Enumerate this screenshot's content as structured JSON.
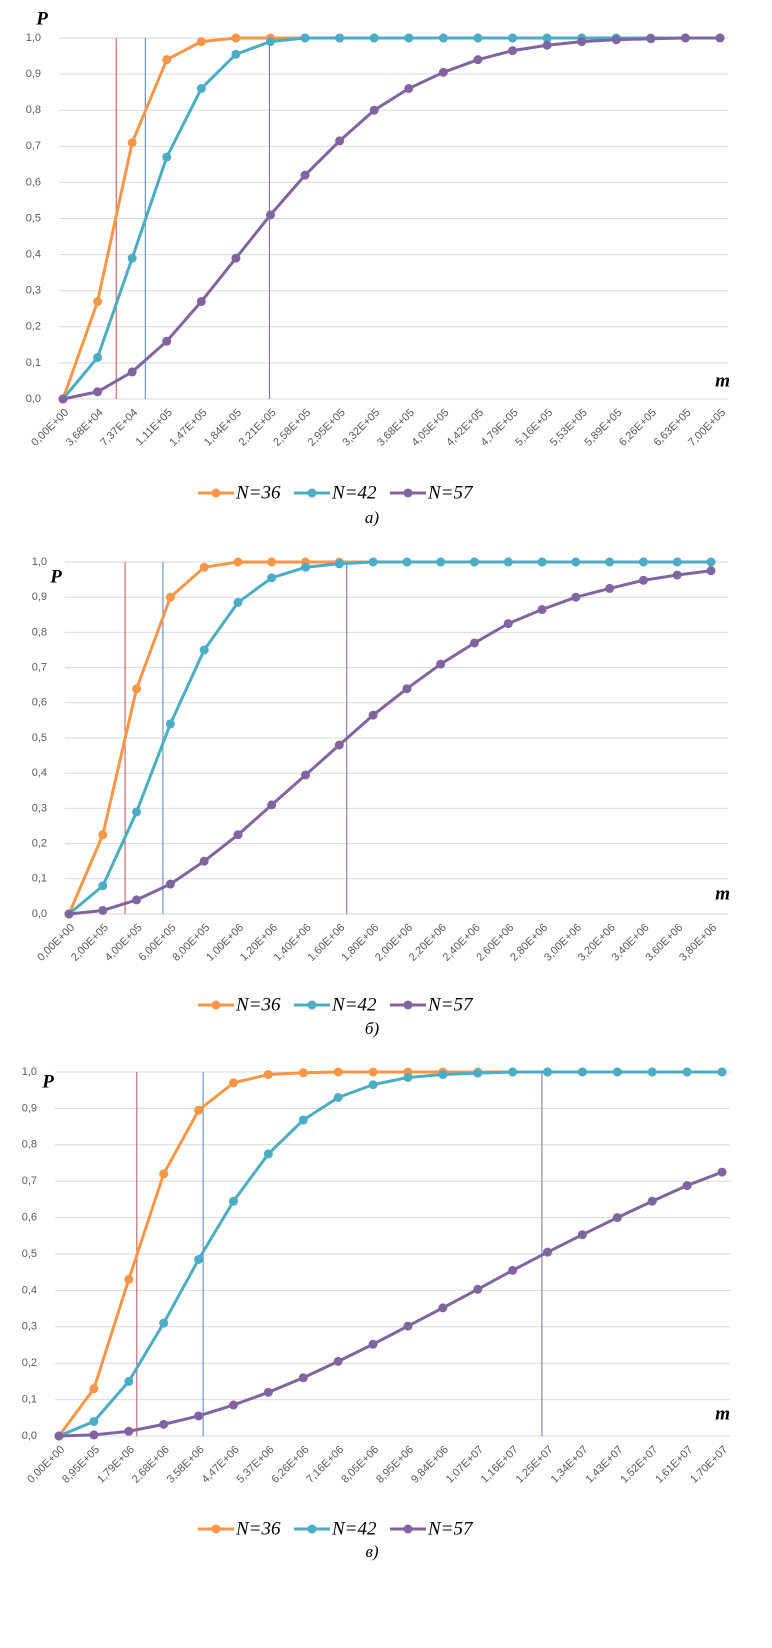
{
  "chart_data": [
    {
      "type": "line",
      "y_label": "P",
      "x_label": "m",
      "caption": "а)",
      "categories": [
        "0,00E+00",
        "3,68E+04",
        "7,37E+04",
        "1,11E+05",
        "1,47E+05",
        "1,84E+05",
        "2,21E+05",
        "2,58E+05",
        "2,95E+05",
        "3,32E+05",
        "3,68E+05",
        "4,05E+05",
        "4,42E+05",
        "4,79E+05",
        "5,16E+05",
        "5,53E+05",
        "5,89E+05",
        "6,26E+05",
        "6,63E+05",
        "7,00E+05"
      ],
      "series": [
        {
          "name": "N=36",
          "color": "#f79646",
          "values": [
            0,
            0.27,
            0.71,
            0.94,
            0.99,
            1,
            1,
            1,
            1,
            1,
            1,
            1,
            1,
            1,
            1,
            1,
            1,
            1,
            1,
            1
          ]
        },
        {
          "name": "N=42",
          "color": "#4bacc6",
          "values": [
            0,
            0.115,
            0.39,
            0.67,
            0.86,
            0.955,
            0.99,
            1,
            1,
            1,
            1,
            1,
            1,
            1,
            1,
            1,
            1,
            1,
            1,
            1
          ]
        },
        {
          "name": "N=57",
          "color": "#8064a2",
          "values": [
            0,
            0.02,
            0.075,
            0.16,
            0.27,
            0.39,
            0.51,
            0.62,
            0.715,
            0.8,
            0.86,
            0.905,
            0.94,
            0.965,
            0.98,
            0.99,
            0.995,
            0.998,
            1,
            1
          ]
        }
      ],
      "vlines": [
        {
          "x": 1.54,
          "color": "#c0504d"
        },
        {
          "x": 2.38,
          "color": "#4f81bd"
        },
        {
          "x": 5.97,
          "color": "#8064a2"
        }
      ],
      "ylim": [
        0,
        1
      ],
      "yticks": [
        {
          "value": 0,
          "label": "0,0"
        },
        {
          "value": 0.1,
          "label": "0,1"
        },
        {
          "value": 0.2,
          "label": "0,2"
        },
        {
          "value": 0.3,
          "label": "0,3"
        },
        {
          "value": 0.4,
          "label": "0,4"
        },
        {
          "value": 0.5,
          "label": "0,5"
        },
        {
          "value": 0.6,
          "label": "0,6"
        },
        {
          "value": 0.7,
          "label": "0,7"
        },
        {
          "value": 0.8,
          "label": "0,8"
        },
        {
          "value": 0.9,
          "label": "0,9"
        },
        {
          "value": 1,
          "label": "1,0"
        }
      ],
      "grid": true
    },
    {
      "type": "line",
      "y_label": "P",
      "x_label": "m",
      "caption": "б)",
      "categories": [
        "0,00E+00",
        "2,00E+05",
        "4,00E+05",
        "6,00E+05",
        "8,00E+05",
        "1,00E+06",
        "1,20E+06",
        "1,40E+06",
        "1,60E+06",
        "1,80E+06",
        "2,00E+06",
        "2,20E+06",
        "2,40E+06",
        "2,60E+06",
        "2,80E+06",
        "3,00E+06",
        "3,20E+06",
        "3,40E+06",
        "3,60E+06",
        "3,80E+06"
      ],
      "series": [
        {
          "name": "N=36",
          "color": "#f79646",
          "values": [
            0,
            0.225,
            0.64,
            0.9,
            0.985,
            1,
            1,
            1,
            1,
            1,
            1,
            1,
            1,
            1,
            1,
            1,
            1,
            1,
            1,
            1
          ]
        },
        {
          "name": "N=42",
          "color": "#4bacc6",
          "values": [
            0,
            0.08,
            0.29,
            0.54,
            0.75,
            0.885,
            0.955,
            0.985,
            0.995,
            1,
            1,
            1,
            1,
            1,
            1,
            1,
            1,
            1,
            1,
            1
          ]
        },
        {
          "name": "N=57",
          "color": "#8064a2",
          "values": [
            0,
            0.01,
            0.04,
            0.085,
            0.15,
            0.225,
            0.31,
            0.395,
            0.48,
            0.565,
            0.64,
            0.71,
            0.77,
            0.825,
            0.865,
            0.9,
            0.925,
            0.948,
            0.963,
            0.975
          ]
        }
      ],
      "vlines": [
        {
          "x": 1.66,
          "color": "#c0504d"
        },
        {
          "x": 2.78,
          "color": "#4f81bd"
        },
        {
          "x": 8.22,
          "color": "#8064a2"
        }
      ],
      "ylim": [
        0,
        1
      ],
      "yticks": [
        {
          "value": 0,
          "label": "0,0"
        },
        {
          "value": 0.1,
          "label": "0,1"
        },
        {
          "value": 0.2,
          "label": "0,2"
        },
        {
          "value": 0.3,
          "label": "0,3"
        },
        {
          "value": 0.4,
          "label": "0,4"
        },
        {
          "value": 0.5,
          "label": "0,5"
        },
        {
          "value": 0.6,
          "label": "0,6"
        },
        {
          "value": 0.7,
          "label": "0,7"
        },
        {
          "value": 0.8,
          "label": "0,8"
        },
        {
          "value": 0.9,
          "label": "0,9"
        },
        {
          "value": 1,
          "label": "1,0"
        }
      ],
      "grid": true
    },
    {
      "type": "line",
      "y_label": "P",
      "x_label": "m",
      "caption": "в)",
      "categories": [
        "0,00E+00",
        "8,95E+05",
        "1,79E+06",
        "2,68E+06",
        "3,58E+06",
        "4,47E+06",
        "5,37E+06",
        "6,26E+06",
        "7,16E+06",
        "8,05E+06",
        "8,95E+06",
        "9,84E+06",
        "1,07E+07",
        "1,16E+07",
        "1,25E+07",
        "1,34E+07",
        "1,43E+07",
        "1,52E+07",
        "1,61E+07",
        "1,70E+07"
      ],
      "series": [
        {
          "name": "N=36",
          "color": "#f79646",
          "values": [
            0,
            0.13,
            0.43,
            0.72,
            0.895,
            0.97,
            0.993,
            0.998,
            1,
            1,
            1,
            1,
            1,
            1,
            1,
            1,
            1,
            1,
            1,
            1
          ]
        },
        {
          "name": "N=42",
          "color": "#4bacc6",
          "values": [
            0,
            0.04,
            0.15,
            0.31,
            0.485,
            0.645,
            0.775,
            0.868,
            0.93,
            0.965,
            0.985,
            0.993,
            0.997,
            1,
            1,
            1,
            1,
            1,
            1,
            1
          ]
        },
        {
          "name": "N=57",
          "color": "#8064a2",
          "values": [
            0,
            0.003,
            0.013,
            0.032,
            0.055,
            0.085,
            0.12,
            0.16,
            0.205,
            0.252,
            0.302,
            0.352,
            0.403,
            0.455,
            0.505,
            0.553,
            0.6,
            0.645,
            0.688,
            0.725
          ]
        }
      ],
      "vlines": [
        {
          "x": 2.23,
          "color": "#c0504d"
        },
        {
          "x": 4.13,
          "color": "#4f81bd"
        },
        {
          "x": 13.84,
          "color": "#8064a2"
        }
      ],
      "ylim": [
        0,
        1
      ],
      "yticks": [
        {
          "value": 0,
          "label": "0,0"
        },
        {
          "value": 0.1,
          "label": "0,1"
        },
        {
          "value": 0.2,
          "label": "0,2"
        },
        {
          "value": 0.3,
          "label": "0,3"
        },
        {
          "value": 0.4,
          "label": "0,4"
        },
        {
          "value": 0.5,
          "label": "0,5"
        },
        {
          "value": 0.6,
          "label": "0,6"
        },
        {
          "value": 0.7,
          "label": "0,7"
        },
        {
          "value": 0.8,
          "label": "0,8"
        },
        {
          "value": 0.9,
          "label": "0,9"
        },
        {
          "value": 1,
          "label": "1,0"
        }
      ],
      "grid": true
    }
  ]
}
